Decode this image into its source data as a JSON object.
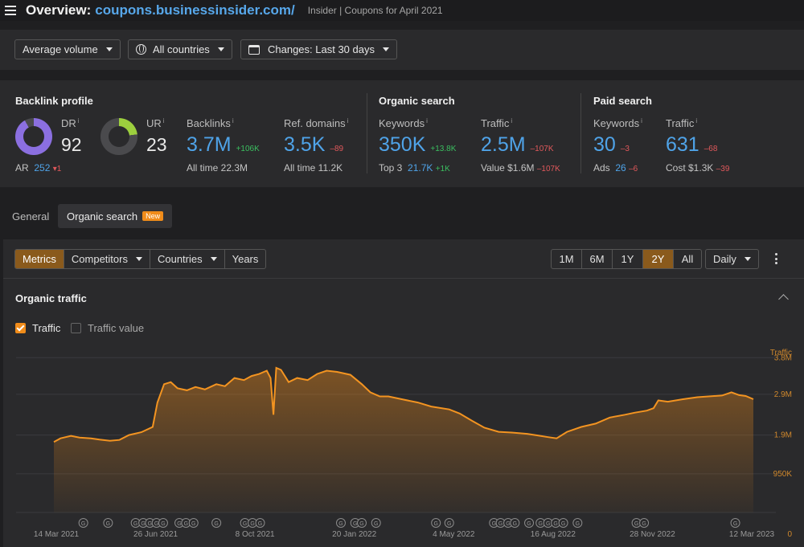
{
  "header": {
    "title_prefix": "Overview:",
    "domain": "coupons.businessinsider.com/",
    "subtitle": "Insider | Coupons for April 2021"
  },
  "filters": {
    "volume": "Average volume",
    "countries": "All countries",
    "changes": "Changes: Last 30 days"
  },
  "backlink_profile": {
    "title": "Backlink profile",
    "dr_label": "DR",
    "dr_value": "92",
    "ar_label": "AR",
    "ar_value": "252",
    "ar_change": "▾1",
    "ur_label": "UR",
    "ur_value": "23",
    "backlinks_label": "Backlinks",
    "backlinks_value": "3.7M",
    "backlinks_change": "+106K",
    "backlinks_alltime": "All time 22.3M",
    "refdomains_label": "Ref. domains",
    "refdomains_value": "3.5K",
    "refdomains_change": "–89",
    "refdomains_alltime": "All time 11.2K"
  },
  "organic_search": {
    "title": "Organic search",
    "keywords_label": "Keywords",
    "keywords_value": "350K",
    "keywords_change": "+13.8K",
    "top3_label": "Top 3",
    "top3_value": "21.7K",
    "top3_change": "+1K",
    "traffic_label": "Traffic",
    "traffic_value": "2.5M",
    "traffic_change": "–107K",
    "value_label": "Value $1.6M",
    "value_change": "–107K"
  },
  "paid_search": {
    "title": "Paid search",
    "keywords_label": "Keywords",
    "keywords_value": "30",
    "keywords_change": "–3",
    "ads_label": "Ads",
    "ads_value": "26",
    "ads_change": "–6",
    "traffic_label": "Traffic",
    "traffic_value": "631",
    "traffic_change": "–68",
    "cost_label": "Cost $1.3K",
    "cost_change": "–39"
  },
  "tabs": {
    "general": "General",
    "organic": "Organic search",
    "new_badge": "New"
  },
  "chart_controls": {
    "metrics": "Metrics",
    "competitors": "Competitors",
    "countries": "Countries",
    "years": "Years",
    "ranges": [
      "1M",
      "6M",
      "1Y",
      "2Y",
      "All"
    ],
    "active_range": "2Y",
    "interval": "Daily"
  },
  "panel": {
    "title": "Organic traffic",
    "traffic_checkbox": "Traffic",
    "traffic_value_checkbox": "Traffic value"
  },
  "colors": {
    "accent": "#f08c1a",
    "link_blue": "#4fa3e8",
    "positive": "#3bbf60",
    "negative": "#e0585b"
  },
  "chart_data": {
    "type": "area",
    "title": "Organic traffic",
    "ylabel": "Traffic",
    "ytick_labels": [
      "0",
      "950K",
      "1.9M",
      "2.9M",
      "3.8M"
    ],
    "ytick_values": [
      0,
      950000,
      1900000,
      2900000,
      3800000
    ],
    "xtick_labels": [
      "14 Mar 2021",
      "26 Jun 2021",
      "8 Oct 2021",
      "20 Jan 2022",
      "4 May 2022",
      "16 Aug 2022",
      "28 Nov 2022",
      "12 Mar 2023"
    ],
    "ylim": [
      0,
      4200000
    ],
    "grid": true,
    "series": [
      {
        "name": "Traffic",
        "points": [
          [
            "2021-03-14",
            1730000
          ],
          [
            "2021-03-21",
            1820000
          ],
          [
            "2021-04-01",
            1880000
          ],
          [
            "2021-04-10",
            1840000
          ],
          [
            "2021-04-22",
            1820000
          ],
          [
            "2021-05-01",
            1790000
          ],
          [
            "2021-05-12",
            1760000
          ],
          [
            "2021-05-22",
            1780000
          ],
          [
            "2021-06-01",
            1900000
          ],
          [
            "2021-06-14",
            1970000
          ],
          [
            "2021-06-26",
            2100000
          ],
          [
            "2021-07-01",
            2700000
          ],
          [
            "2021-07-08",
            3150000
          ],
          [
            "2021-07-15",
            3200000
          ],
          [
            "2021-07-22",
            3050000
          ],
          [
            "2021-08-01",
            3000000
          ],
          [
            "2021-08-10",
            3080000
          ],
          [
            "2021-08-20",
            3020000
          ],
          [
            "2021-09-01",
            3150000
          ],
          [
            "2021-09-10",
            3100000
          ],
          [
            "2021-09-20",
            3300000
          ],
          [
            "2021-09-30",
            3250000
          ],
          [
            "2021-10-08",
            3350000
          ],
          [
            "2021-10-16",
            3400000
          ],
          [
            "2021-10-24",
            3480000
          ],
          [
            "2021-10-28",
            3300000
          ],
          [
            "2021-10-31",
            2400000
          ],
          [
            "2021-11-03",
            3550000
          ],
          [
            "2021-11-08",
            3500000
          ],
          [
            "2021-11-16",
            3200000
          ],
          [
            "2021-11-25",
            3300000
          ],
          [
            "2021-12-06",
            3250000
          ],
          [
            "2021-12-16",
            3400000
          ],
          [
            "2021-12-26",
            3480000
          ],
          [
            "2022-01-06",
            3450000
          ],
          [
            "2022-01-20",
            3380000
          ],
          [
            "2022-02-01",
            3150000
          ],
          [
            "2022-02-10",
            2950000
          ],
          [
            "2022-02-20",
            2850000
          ],
          [
            "2022-03-01",
            2850000
          ],
          [
            "2022-03-15",
            2780000
          ],
          [
            "2022-04-01",
            2700000
          ],
          [
            "2022-04-15",
            2600000
          ],
          [
            "2022-05-04",
            2530000
          ],
          [
            "2022-05-15",
            2430000
          ],
          [
            "2022-05-28",
            2250000
          ],
          [
            "2022-06-10",
            2080000
          ],
          [
            "2022-06-25",
            1980000
          ],
          [
            "2022-07-10",
            1960000
          ],
          [
            "2022-07-25",
            1930000
          ],
          [
            "2022-08-05",
            1890000
          ],
          [
            "2022-08-16",
            1850000
          ],
          [
            "2022-08-25",
            1820000
          ],
          [
            "2022-09-05",
            1980000
          ],
          [
            "2022-09-20",
            2100000
          ],
          [
            "2022-10-05",
            2180000
          ],
          [
            "2022-10-20",
            2330000
          ],
          [
            "2022-11-05",
            2400000
          ],
          [
            "2022-11-15",
            2450000
          ],
          [
            "2022-11-28",
            2500000
          ],
          [
            "2022-12-05",
            2560000
          ],
          [
            "2022-12-10",
            2750000
          ],
          [
            "2022-12-20",
            2720000
          ],
          [
            "2023-01-05",
            2780000
          ],
          [
            "2023-01-20",
            2830000
          ],
          [
            "2023-02-01",
            2850000
          ],
          [
            "2023-02-15",
            2870000
          ],
          [
            "2023-02-25",
            2950000
          ],
          [
            "2023-03-05",
            2880000
          ],
          [
            "2023-03-12",
            2860000
          ],
          [
            "2023-03-20",
            2780000
          ]
        ]
      }
    ],
    "annotation_marker_dates": [
      "2021-04-14",
      "2021-05-10",
      "2021-06-08",
      "2021-06-16",
      "2021-06-23",
      "2021-06-30",
      "2021-07-07",
      "2021-07-24",
      "2021-07-31",
      "2021-08-08",
      "2021-09-01",
      "2021-10-01",
      "2021-10-09",
      "2021-10-17",
      "2022-01-10",
      "2022-01-25",
      "2022-02-01",
      "2022-02-16",
      "2022-04-20",
      "2022-05-04",
      "2022-06-20",
      "2022-06-27",
      "2022-07-05",
      "2022-07-12",
      "2022-07-27",
      "2022-08-08",
      "2022-08-16",
      "2022-08-24",
      "2022-09-01",
      "2022-09-16",
      "2022-11-17",
      "2022-11-25",
      "2023-03-01"
    ]
  }
}
